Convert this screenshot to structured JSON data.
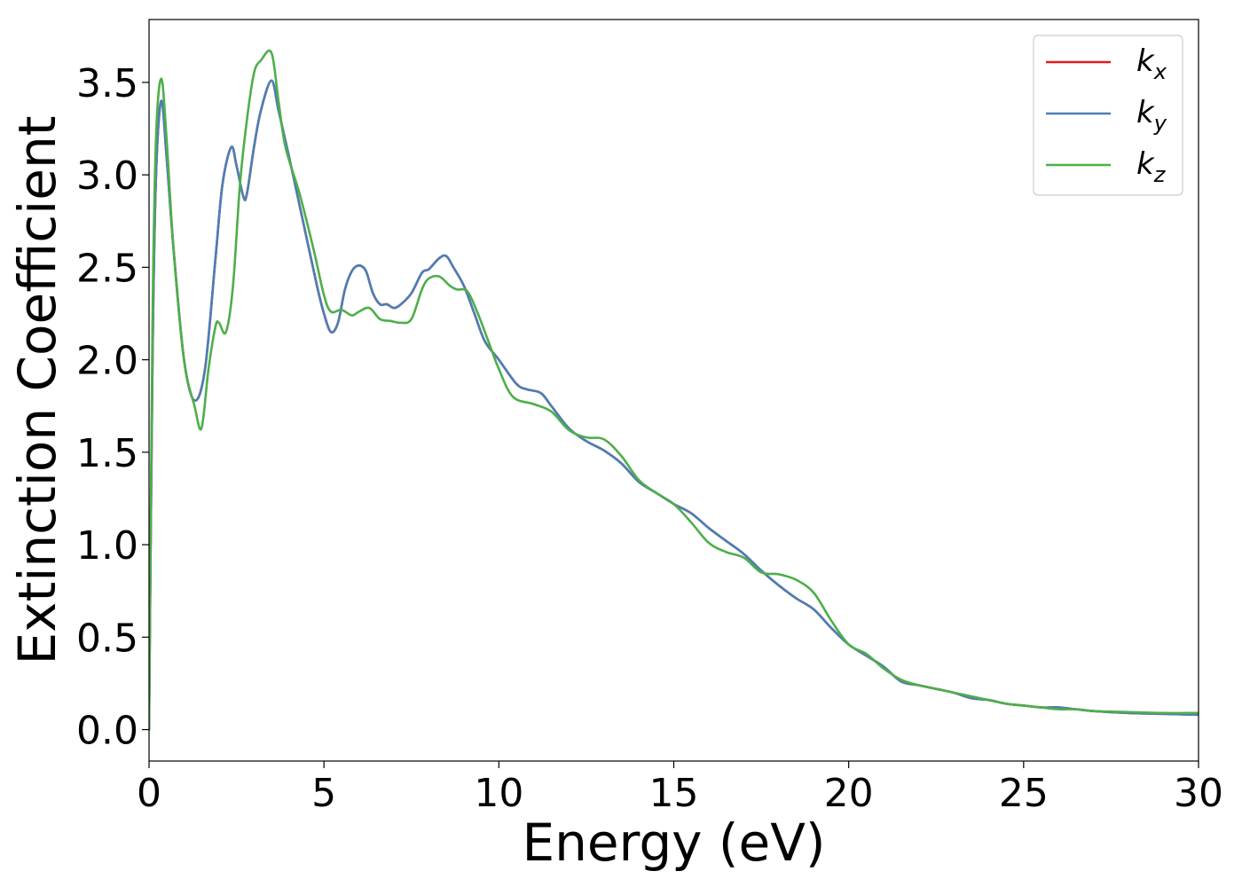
{
  "chart_data": {
    "type": "line",
    "title": "",
    "xlabel": "Energy (eV)",
    "ylabel": "Extinction Coefficient",
    "xlim": [
      0,
      30
    ],
    "ylim": [
      -0.17,
      3.84
    ],
    "xticks": [
      0,
      5,
      10,
      15,
      20,
      25,
      30
    ],
    "xtick_labels": [
      "0",
      "5",
      "10",
      "15",
      "20",
      "25",
      "30"
    ],
    "yticks": [
      0.0,
      0.5,
      1.0,
      1.5,
      2.0,
      2.5,
      3.0,
      3.5
    ],
    "ytick_labels": [
      "0.0",
      "0.5",
      "1.0",
      "1.5",
      "2.0",
      "2.5",
      "3.0",
      "3.5"
    ],
    "grid": false,
    "legend_position": "top-right",
    "series": [
      {
        "name": "k_x",
        "legend_main": "k",
        "legend_sub": "x",
        "color": "#e41a1c",
        "x": [
          0,
          0.1,
          0.2,
          0.35,
          0.5,
          0.7,
          1.0,
          1.3,
          1.6,
          1.9,
          2.1,
          2.35,
          2.5,
          2.7,
          2.8,
          3.0,
          3.2,
          3.5,
          3.7,
          4.0,
          4.4,
          4.8,
          5.0,
          5.2,
          5.4,
          5.6,
          5.8,
          6.0,
          6.2,
          6.4,
          6.6,
          6.8,
          7.0,
          7.2,
          7.5,
          7.8,
          8.0,
          8.3,
          8.5,
          8.7,
          9.0,
          9.3,
          9.6,
          10.0,
          10.5,
          10.8,
          11.2,
          11.5,
          12.0,
          12.5,
          13.0,
          13.5,
          14.0,
          14.5,
          15.0,
          15.5,
          16.0,
          16.5,
          17.0,
          17.5,
          18.0,
          18.5,
          19.0,
          19.5,
          20.0,
          20.5,
          21.0,
          21.5,
          22.0,
          22.5,
          23.0,
          23.5,
          24.0,
          24.5,
          25.0,
          25.5,
          26.0,
          26.5,
          27.0,
          28.0,
          29.0,
          30.0
        ],
        "values": [
          0.0,
          2.0,
          3.0,
          3.4,
          3.1,
          2.6,
          2.0,
          1.78,
          1.95,
          2.55,
          2.95,
          3.15,
          3.05,
          2.88,
          2.9,
          3.15,
          3.35,
          3.51,
          3.35,
          3.1,
          2.75,
          2.4,
          2.25,
          2.15,
          2.2,
          2.38,
          2.48,
          2.51,
          2.48,
          2.36,
          2.3,
          2.3,
          2.28,
          2.3,
          2.36,
          2.47,
          2.49,
          2.55,
          2.56,
          2.5,
          2.4,
          2.25,
          2.1,
          2.0,
          1.87,
          1.84,
          1.82,
          1.75,
          1.63,
          1.56,
          1.51,
          1.44,
          1.34,
          1.28,
          1.22,
          1.17,
          1.09,
          1.02,
          0.95,
          0.86,
          0.78,
          0.71,
          0.65,
          0.55,
          0.46,
          0.4,
          0.34,
          0.26,
          0.24,
          0.22,
          0.2,
          0.17,
          0.16,
          0.14,
          0.13,
          0.12,
          0.12,
          0.11,
          0.1,
          0.09,
          0.085,
          0.08
        ]
      },
      {
        "name": "k_y",
        "legend_main": "k",
        "legend_sub": "y",
        "color": "#4a7fb5",
        "x": [
          0,
          0.1,
          0.2,
          0.35,
          0.5,
          0.7,
          1.0,
          1.3,
          1.6,
          1.9,
          2.1,
          2.35,
          2.5,
          2.7,
          2.8,
          3.0,
          3.2,
          3.5,
          3.7,
          4.0,
          4.4,
          4.8,
          5.0,
          5.2,
          5.4,
          5.6,
          5.8,
          6.0,
          6.2,
          6.4,
          6.6,
          6.8,
          7.0,
          7.2,
          7.5,
          7.8,
          8.0,
          8.3,
          8.5,
          8.7,
          9.0,
          9.3,
          9.6,
          10.0,
          10.5,
          10.8,
          11.2,
          11.5,
          12.0,
          12.5,
          13.0,
          13.5,
          14.0,
          14.5,
          15.0,
          15.5,
          16.0,
          16.5,
          17.0,
          17.5,
          18.0,
          18.5,
          19.0,
          19.5,
          20.0,
          20.5,
          21.0,
          21.5,
          22.0,
          22.5,
          23.0,
          23.5,
          24.0,
          24.5,
          25.0,
          25.5,
          26.0,
          26.5,
          27.0,
          28.0,
          29.0,
          30.0
        ],
        "values": [
          0.0,
          2.0,
          3.0,
          3.4,
          3.1,
          2.6,
          2.0,
          1.78,
          1.95,
          2.55,
          2.95,
          3.15,
          3.05,
          2.88,
          2.9,
          3.15,
          3.35,
          3.51,
          3.35,
          3.1,
          2.75,
          2.4,
          2.25,
          2.15,
          2.2,
          2.38,
          2.48,
          2.51,
          2.48,
          2.36,
          2.3,
          2.3,
          2.28,
          2.3,
          2.36,
          2.47,
          2.49,
          2.55,
          2.56,
          2.5,
          2.4,
          2.25,
          2.1,
          2.0,
          1.87,
          1.84,
          1.82,
          1.75,
          1.63,
          1.56,
          1.51,
          1.44,
          1.34,
          1.28,
          1.22,
          1.17,
          1.09,
          1.02,
          0.95,
          0.86,
          0.78,
          0.71,
          0.65,
          0.55,
          0.46,
          0.4,
          0.34,
          0.26,
          0.24,
          0.22,
          0.2,
          0.17,
          0.16,
          0.14,
          0.13,
          0.12,
          0.12,
          0.11,
          0.1,
          0.09,
          0.085,
          0.08
        ]
      },
      {
        "name": "k_z",
        "legend_main": "k",
        "legend_sub": "z",
        "color": "#4daf4a",
        "x": [
          0,
          0.1,
          0.2,
          0.35,
          0.5,
          0.7,
          1.0,
          1.3,
          1.5,
          1.7,
          1.9,
          2.0,
          2.2,
          2.4,
          2.6,
          2.8,
          3.0,
          3.2,
          3.5,
          3.7,
          3.9,
          4.3,
          4.7,
          5.0,
          5.2,
          5.5,
          5.8,
          6.0,
          6.3,
          6.6,
          6.9,
          7.2,
          7.5,
          7.8,
          8.0,
          8.3,
          8.6,
          8.8,
          9.1,
          9.4,
          9.7,
          10.0,
          10.4,
          11.0,
          11.5,
          12.0,
          12.5,
          13.0,
          13.5,
          14.0,
          14.5,
          15.0,
          15.5,
          16.0,
          16.5,
          17.0,
          17.5,
          18.0,
          18.5,
          19.0,
          19.5,
          20.0,
          20.5,
          21.0,
          21.5,
          22.0,
          22.5,
          23.0,
          23.5,
          24.0,
          24.5,
          25.0,
          25.5,
          26.0,
          26.5,
          27.0,
          28.0,
          29.0,
          30.0
        ],
        "values": [
          0.0,
          2.2,
          3.2,
          3.52,
          3.2,
          2.6,
          2.0,
          1.75,
          1.63,
          1.95,
          2.18,
          2.2,
          2.15,
          2.4,
          2.95,
          3.3,
          3.55,
          3.62,
          3.66,
          3.4,
          3.15,
          2.9,
          2.6,
          2.35,
          2.26,
          2.27,
          2.24,
          2.26,
          2.28,
          2.22,
          2.21,
          2.2,
          2.22,
          2.38,
          2.44,
          2.45,
          2.4,
          2.38,
          2.37,
          2.25,
          2.1,
          1.95,
          1.8,
          1.76,
          1.72,
          1.62,
          1.58,
          1.57,
          1.48,
          1.35,
          1.28,
          1.22,
          1.12,
          1.01,
          0.96,
          0.93,
          0.85,
          0.84,
          0.81,
          0.74,
          0.59,
          0.46,
          0.41,
          0.33,
          0.27,
          0.24,
          0.22,
          0.2,
          0.18,
          0.16,
          0.14,
          0.13,
          0.12,
          0.11,
          0.11,
          0.1,
          0.095,
          0.09,
          0.09
        ]
      }
    ]
  }
}
